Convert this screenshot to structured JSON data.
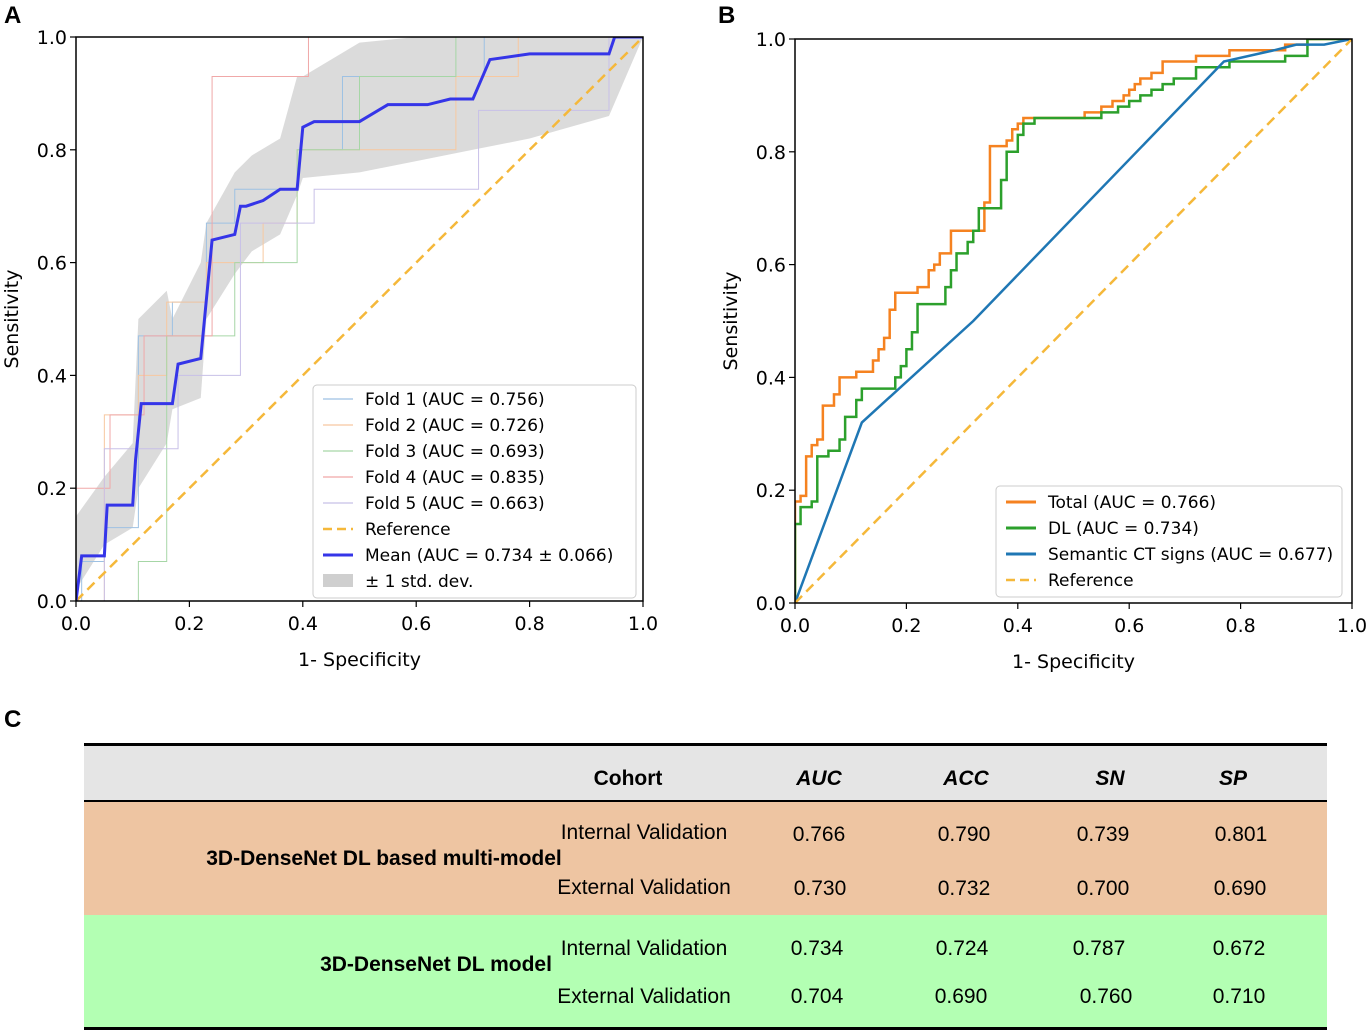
{
  "panel_labels": {
    "a": "A",
    "b": "B",
    "c": "C"
  },
  "chart_data": [
    {
      "type": "line",
      "panel": "A",
      "xlabel": "1- Specificity",
      "ylabel": "Sensitivity",
      "xlim": [
        0,
        1
      ],
      "ylim": [
        0,
        1
      ],
      "xticks": [
        "0.0",
        "0.2",
        "0.4",
        "0.6",
        "0.8",
        "1.0"
      ],
      "yticks": [
        "0.0",
        "0.2",
        "0.4",
        "0.6",
        "0.8",
        "1.0"
      ],
      "legend_position": "lower-right",
      "band": {
        "label": "± 1 std. dev.",
        "color": "#cfcfcf",
        "x": [
          0.0,
          0.0,
          0.05,
          0.1,
          0.11,
          0.16,
          0.17,
          0.22,
          0.23,
          0.28,
          0.31,
          0.36,
          0.39,
          0.4,
          0.5,
          0.6,
          0.7,
          0.8,
          0.94,
          1.0
        ],
        "upper": [
          0.08,
          0.15,
          0.22,
          0.28,
          0.5,
          0.55,
          0.5,
          0.6,
          0.67,
          0.76,
          0.79,
          0.82,
          0.93,
          0.93,
          0.99,
          1.0,
          1.0,
          1.0,
          1.0,
          1.0
        ],
        "lower": [
          0.0,
          0.02,
          0.1,
          0.13,
          0.2,
          0.28,
          0.34,
          0.36,
          0.5,
          0.58,
          0.62,
          0.65,
          0.72,
          0.75,
          0.76,
          0.78,
          0.8,
          0.82,
          0.86,
          1.0
        ]
      },
      "series": [
        {
          "name": "Fold 1 (AUC = 0.756)",
          "color": "#9ec1e3",
          "width": 1,
          "dash": "",
          "x": [
            0,
            0.01,
            0.01,
            0.05,
            0.05,
            0.11,
            0.11,
            0.17,
            0.17,
            0.23,
            0.23,
            0.28,
            0.28,
            0.39,
            0.39,
            0.47,
            0.47,
            0.72,
            0.72,
            1.0
          ],
          "y": [
            0,
            0,
            0.07,
            0.07,
            0.13,
            0.13,
            0.47,
            0.47,
            0.53,
            0.53,
            0.67,
            0.67,
            0.73,
            0.73,
            0.8,
            0.8,
            0.93,
            0.93,
            1.0,
            1.0
          ]
        },
        {
          "name": "Fold 2 (AUC = 0.726)",
          "color": "#f7c8a0",
          "width": 1,
          "dash": "",
          "x": [
            0,
            0.05,
            0.05,
            0.11,
            0.11,
            0.16,
            0.16,
            0.23,
            0.23,
            0.33,
            0.33,
            0.39,
            0.39,
            0.67,
            0.67,
            0.78,
            0.78,
            1.0
          ],
          "y": [
            0,
            0,
            0.33,
            0.33,
            0.4,
            0.4,
            0.53,
            0.53,
            0.6,
            0.6,
            0.67,
            0.67,
            0.8,
            0.8,
            0.93,
            0.93,
            1.0,
            1.0
          ]
        },
        {
          "name": "Fold 3 (AUC = 0.693)",
          "color": "#a6d6a6",
          "width": 1,
          "dash": "",
          "x": [
            0,
            0.11,
            0.11,
            0.16,
            0.16,
            0.28,
            0.28,
            0.39,
            0.39,
            0.5,
            0.5,
            0.67,
            0.67,
            0.78,
            0.78,
            1.0
          ],
          "y": [
            0,
            0,
            0.07,
            0.07,
            0.47,
            0.47,
            0.6,
            0.6,
            0.8,
            0.8,
            0.93,
            0.93,
            1.0,
            1.0,
            1.0,
            1.0
          ]
        },
        {
          "name": "Fold 4 (AUC = 0.835)",
          "color": "#f0a8a8",
          "width": 1,
          "dash": "",
          "x": [
            0,
            0.0,
            0.06,
            0.06,
            0.12,
            0.12,
            0.24,
            0.24,
            0.41,
            0.41,
            1.0
          ],
          "y": [
            0,
            0.2,
            0.2,
            0.33,
            0.33,
            0.47,
            0.47,
            0.93,
            0.93,
            1.0,
            1.0
          ]
        },
        {
          "name": "Fold 5 (AUC = 0.663)",
          "color": "#c8c0e8",
          "width": 1,
          "dash": "",
          "x": [
            0,
            0.05,
            0.05,
            0.18,
            0.18,
            0.29,
            0.29,
            0.42,
            0.42,
            0.71,
            0.71,
            0.94,
            0.94,
            1.0
          ],
          "y": [
            0,
            0,
            0.27,
            0.27,
            0.4,
            0.4,
            0.67,
            0.67,
            0.73,
            0.73,
            0.87,
            0.87,
            1.0,
            1.0
          ]
        },
        {
          "name": "Reference",
          "color": "#f5b83a",
          "width": 2.5,
          "dash": "10,6",
          "x": [
            0,
            1
          ],
          "y": [
            0,
            1
          ]
        },
        {
          "name": "Mean (AUC = 0.734 ± 0.066)",
          "color": "#3535e8",
          "width": 3,
          "dash": "",
          "x": [
            0,
            0.01,
            0.05,
            0.055,
            0.1,
            0.105,
            0.115,
            0.17,
            0.18,
            0.22,
            0.24,
            0.28,
            0.29,
            0.3,
            0.33,
            0.36,
            0.39,
            0.4,
            0.42,
            0.5,
            0.55,
            0.62,
            0.66,
            0.7,
            0.73,
            0.8,
            0.94,
            0.95,
            1.0
          ],
          "y": [
            0,
            0.08,
            0.08,
            0.17,
            0.17,
            0.25,
            0.35,
            0.35,
            0.42,
            0.43,
            0.64,
            0.65,
            0.7,
            0.7,
            0.71,
            0.73,
            0.73,
            0.84,
            0.85,
            0.85,
            0.88,
            0.88,
            0.89,
            0.89,
            0.96,
            0.97,
            0.97,
            1.0,
            1.0
          ]
        }
      ],
      "legend": [
        {
          "label": "Fold 1 (AUC = 0.756)",
          "color": "#9ec1e3",
          "kind": "line"
        },
        {
          "label": "Fold 2 (AUC = 0.726)",
          "color": "#f7c8a0",
          "kind": "line"
        },
        {
          "label": "Fold 3 (AUC = 0.693)",
          "color": "#a6d6a6",
          "kind": "line"
        },
        {
          "label": "Fold 4 (AUC = 0.835)",
          "color": "#f0a8a8",
          "kind": "line"
        },
        {
          "label": "Fold 5 (AUC = 0.663)",
          "color": "#c8c0e8",
          "kind": "line"
        },
        {
          "label": "Reference",
          "color": "#f5b83a",
          "kind": "dash"
        },
        {
          "label": "Mean (AUC = 0.734 ± 0.066)",
          "color": "#3535e8",
          "kind": "thick"
        },
        {
          "label": "± 1 std. dev.",
          "color": "#cfcfcf",
          "kind": "patch"
        }
      ]
    },
    {
      "type": "line",
      "panel": "B",
      "xlabel": "1- Specificity",
      "ylabel": "Sensitivity",
      "xlim": [
        0,
        1
      ],
      "ylim": [
        0,
        1
      ],
      "xticks": [
        "0.0",
        "0.2",
        "0.4",
        "0.6",
        "0.8",
        "1.0"
      ],
      "yticks": [
        "0.0",
        "0.2",
        "0.4",
        "0.6",
        "0.8",
        "1.0"
      ],
      "legend_position": "lower-right",
      "series": [
        {
          "name": "Total (AUC = 0.766)",
          "color": "#f58220",
          "width": 2.5,
          "dash": "",
          "x": [
            0,
            0.0,
            0.01,
            0.01,
            0.02,
            0.02,
            0.03,
            0.03,
            0.04,
            0.04,
            0.05,
            0.05,
            0.07,
            0.07,
            0.08,
            0.08,
            0.11,
            0.11,
            0.14,
            0.14,
            0.15,
            0.15,
            0.16,
            0.16,
            0.17,
            0.17,
            0.18,
            0.18,
            0.22,
            0.22,
            0.24,
            0.24,
            0.25,
            0.25,
            0.26,
            0.26,
            0.28,
            0.28,
            0.34,
            0.34,
            0.35,
            0.35,
            0.38,
            0.38,
            0.39,
            0.39,
            0.4,
            0.4,
            0.41,
            0.41,
            0.52,
            0.52,
            0.55,
            0.55,
            0.57,
            0.57,
            0.59,
            0.59,
            0.6,
            0.6,
            0.61,
            0.61,
            0.62,
            0.62,
            0.64,
            0.64,
            0.66,
            0.66,
            0.72,
            0.72,
            0.78,
            0.78,
            0.88,
            0.88,
            0.92,
            0.92,
            1.0
          ],
          "y": [
            0,
            0.18,
            0.18,
            0.19,
            0.19,
            0.26,
            0.26,
            0.28,
            0.28,
            0.29,
            0.29,
            0.35,
            0.35,
            0.37,
            0.37,
            0.4,
            0.4,
            0.41,
            0.41,
            0.43,
            0.43,
            0.45,
            0.45,
            0.47,
            0.47,
            0.52,
            0.52,
            0.55,
            0.55,
            0.56,
            0.56,
            0.59,
            0.59,
            0.6,
            0.6,
            0.62,
            0.62,
            0.66,
            0.66,
            0.71,
            0.71,
            0.81,
            0.81,
            0.82,
            0.82,
            0.84,
            0.84,
            0.85,
            0.85,
            0.86,
            0.86,
            0.87,
            0.87,
            0.88,
            0.88,
            0.89,
            0.89,
            0.9,
            0.9,
            0.91,
            0.91,
            0.92,
            0.92,
            0.93,
            0.93,
            0.94,
            0.94,
            0.96,
            0.96,
            0.97,
            0.97,
            0.98,
            0.98,
            0.99,
            0.99,
            1.0,
            1.0
          ]
        },
        {
          "name": "DL (AUC = 0.734)",
          "color": "#2ca02c",
          "width": 2.5,
          "dash": "",
          "x": [
            0,
            0.0,
            0.01,
            0.01,
            0.03,
            0.03,
            0.04,
            0.04,
            0.06,
            0.06,
            0.08,
            0.08,
            0.09,
            0.09,
            0.11,
            0.11,
            0.12,
            0.12,
            0.18,
            0.18,
            0.19,
            0.19,
            0.2,
            0.2,
            0.21,
            0.21,
            0.22,
            0.22,
            0.27,
            0.27,
            0.28,
            0.28,
            0.29,
            0.29,
            0.31,
            0.31,
            0.32,
            0.32,
            0.33,
            0.33,
            0.37,
            0.37,
            0.38,
            0.38,
            0.4,
            0.4,
            0.41,
            0.41,
            0.43,
            0.43,
            0.55,
            0.55,
            0.58,
            0.58,
            0.6,
            0.6,
            0.62,
            0.62,
            0.64,
            0.64,
            0.66,
            0.66,
            0.68,
            0.68,
            0.72,
            0.72,
            0.78,
            0.78,
            0.88,
            0.88,
            0.92,
            0.92,
            1.0
          ],
          "y": [
            0,
            0.14,
            0.14,
            0.17,
            0.17,
            0.18,
            0.18,
            0.26,
            0.26,
            0.27,
            0.27,
            0.29,
            0.29,
            0.33,
            0.33,
            0.36,
            0.36,
            0.38,
            0.38,
            0.4,
            0.4,
            0.42,
            0.42,
            0.45,
            0.45,
            0.48,
            0.48,
            0.53,
            0.53,
            0.56,
            0.56,
            0.59,
            0.59,
            0.62,
            0.62,
            0.64,
            0.64,
            0.66,
            0.66,
            0.7,
            0.7,
            0.75,
            0.75,
            0.8,
            0.8,
            0.83,
            0.83,
            0.85,
            0.85,
            0.86,
            0.86,
            0.87,
            0.87,
            0.88,
            0.88,
            0.89,
            0.89,
            0.9,
            0.9,
            0.91,
            0.91,
            0.92,
            0.92,
            0.93,
            0.93,
            0.95,
            0.95,
            0.96,
            0.96,
            0.97,
            0.97,
            1.0,
            1.0
          ]
        },
        {
          "name": "Semantic CT signs (AUC = 0.677)",
          "color": "#1f77b4",
          "width": 2.5,
          "dash": "",
          "x": [
            0,
            0.12,
            0.32,
            0.77,
            0.86,
            0.9,
            0.95,
            1.0
          ],
          "y": [
            0,
            0.32,
            0.5,
            0.96,
            0.98,
            0.99,
            0.99,
            1.0
          ]
        },
        {
          "name": "Reference",
          "color": "#f5b83a",
          "width": 2.5,
          "dash": "10,6",
          "x": [
            0,
            1
          ],
          "y": [
            0,
            1
          ]
        }
      ],
      "legend": [
        {
          "label": "Total (AUC = 0.766)",
          "color": "#f58220",
          "kind": "thick"
        },
        {
          "label": "DL (AUC = 0.734)",
          "color": "#2ca02c",
          "kind": "thick"
        },
        {
          "label": "Semantic CT signs (AUC = 0.677)",
          "color": "#1f77b4",
          "kind": "thick"
        },
        {
          "label": "Reference",
          "color": "#f5b83a",
          "kind": "dash"
        }
      ]
    },
    {
      "type": "table",
      "panel": "C",
      "columns": [
        "",
        "Cohort",
        "AUC",
        "ACC",
        "SN",
        "SP"
      ],
      "groups": [
        {
          "model": "3D-DenseNet DL based multi-model",
          "color": "#eec5a2",
          "rows": [
            {
              "cohort": "Internal Validation",
              "auc": "0.766",
              "acc": "0.790",
              "sn": "0.739",
              "sp": "0.801"
            },
            {
              "cohort": "External Validation",
              "auc": "0.730",
              "acc": "0.732",
              "sn": "0.700",
              "sp": "0.690"
            }
          ]
        },
        {
          "model": "3D-DenseNet DL model",
          "color": "#b3ffb3",
          "rows": [
            {
              "cohort": "Internal Validation",
              "auc": "0.734",
              "acc": "0.724",
              "sn": "0.787",
              "sp": "0.672"
            },
            {
              "cohort": "External Validation",
              "auc": "0.704",
              "acc": "0.690",
              "sn": "0.760",
              "sp": "0.710"
            }
          ]
        }
      ]
    }
  ]
}
